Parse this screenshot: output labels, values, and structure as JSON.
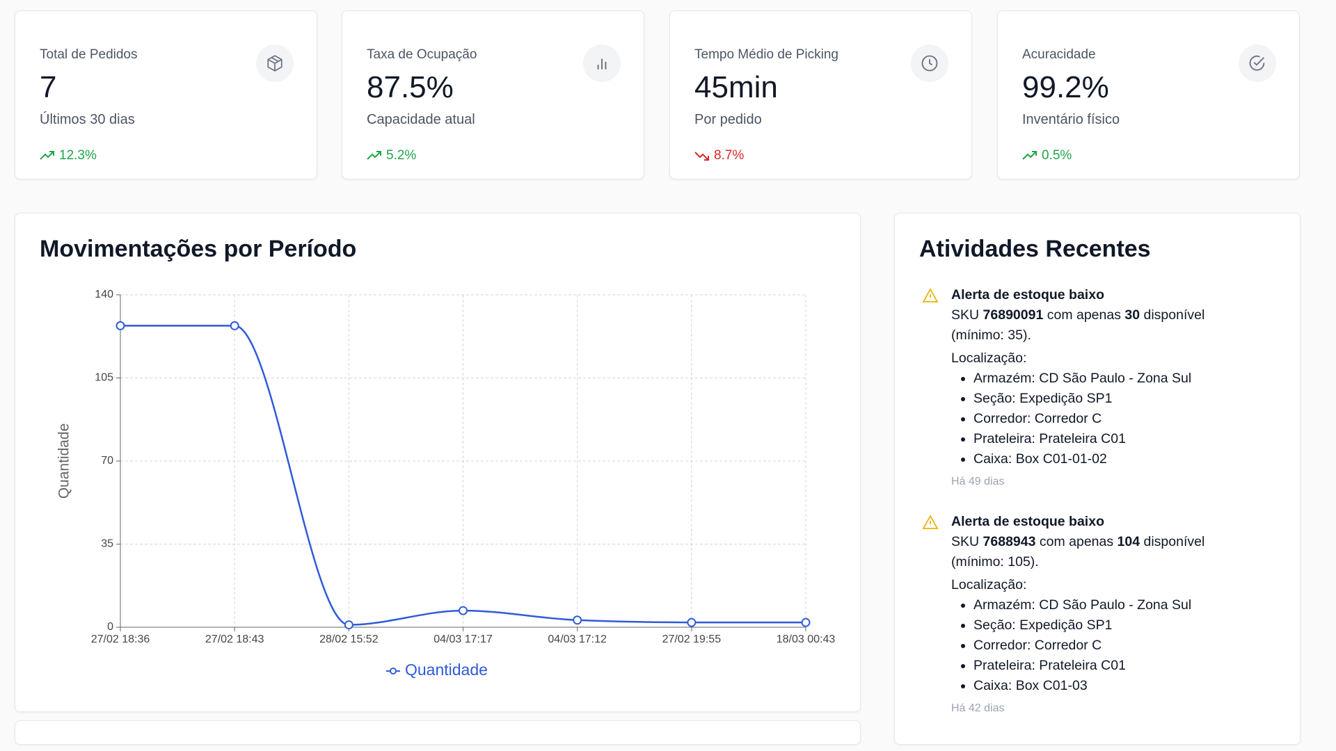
{
  "cards": [
    {
      "title": "Total de Pedidos",
      "value": "7",
      "subtitle": "Últimos 30 dias",
      "trend": "12.3%"
    },
    {
      "title": "Taxa de Ocupação",
      "value": "87.5%",
      "subtitle": "Capacidade atual",
      "trend": "5.2%"
    },
    {
      "title": "Tempo Médio de Picking",
      "value": "45min",
      "subtitle": "Por pedido",
      "trend": "8.7%"
    },
    {
      "title": "Acuracidade",
      "value": "99.2%",
      "subtitle": "Inventário físico",
      "trend": "0.5%"
    }
  ],
  "chart_data": {
    "type": "line",
    "title": "Movimentações por Período",
    "y_label": "Quantidade",
    "categories": [
      "27/02 18:36",
      "27/02 18:43",
      "28/02 15:52",
      "04/03 17:17",
      "04/03 17:12",
      "27/02 19:55",
      "18/03 00:43"
    ],
    "series": [
      {
        "name": "Quantidade",
        "color": "#2f5bd8",
        "values": [
          127,
          127,
          1,
          7,
          3,
          2,
          2
        ]
      }
    ],
    "ylim": [
      0,
      140
    ],
    "yticks": [
      0,
      35,
      70,
      105,
      140
    ],
    "grid": true
  },
  "activities": {
    "title": "Atividades Recentes",
    "items": [
      {
        "title": "Alerta de estoque baixo",
        "sku_prefix": "SKU",
        "sku": "76890091",
        "mid": "com apenas",
        "qty": "30",
        "suffix": "disponível (mínimo: 35).",
        "location_label": "Localização:",
        "location": [
          "Armazém: CD São Paulo - Zona Sul",
          "Seção: Expedição SP1",
          "Corredor: Corredor C",
          "Prateleira: Prateleira C01",
          "Caixa: Box C01-01-02"
        ],
        "time": "Há 49 dias"
      },
      {
        "title": "Alerta de estoque baixo",
        "sku_prefix": "SKU",
        "sku": "7688943",
        "mid": "com apenas",
        "qty": "104",
        "suffix": "disponível (mínimo: 105).",
        "location_label": "Localização:",
        "location": [
          "Armazém: CD São Paulo - Zona Sul",
          "Seção: Expedição SP1",
          "Corredor: Corredor C",
          "Prateleira: Prateleira C01",
          "Caixa: Box C01-03"
        ],
        "time": "Há 42 dias"
      }
    ]
  }
}
